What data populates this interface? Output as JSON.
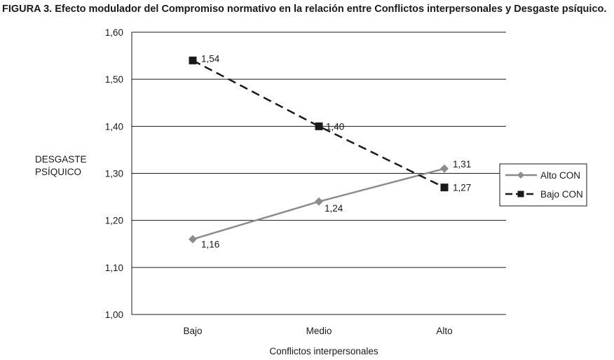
{
  "chart_data": {
    "type": "line",
    "title": "FIGURA 3. Efecto modulador del Compromiso normativo en la relación entre Conflictos interpersonales y Desgaste psíquico.",
    "xlabel": "Conflictos interpersonales",
    "ylabel": [
      "DESGASTE",
      "PSÍQUICO"
    ],
    "categories": [
      "Bajo",
      "Medio",
      "Alto"
    ],
    "ylim": [
      1.0,
      1.6
    ],
    "yticks": [
      1.0,
      1.1,
      1.2,
      1.3,
      1.4,
      1.5,
      1.6
    ],
    "ytick_labels": [
      "1,00",
      "1,10",
      "1,20",
      "1,30",
      "1,40",
      "1,50",
      "1,60"
    ],
    "grid": "horizontal",
    "legend_position": "right",
    "series": [
      {
        "name": "Alto CON",
        "values": [
          1.16,
          1.24,
          1.31
        ],
        "value_labels": [
          "1,16",
          "1,24",
          "1,31"
        ],
        "marker": "diamond",
        "line_style": "solid",
        "color": "#8c8c8c"
      },
      {
        "name": "Bajo CON",
        "values": [
          1.54,
          1.4,
          1.27
        ],
        "value_labels": [
          "1,54",
          "1,40",
          "1,27"
        ],
        "marker": "square",
        "line_style": "dashed",
        "color": "#1a1a1a"
      }
    ]
  }
}
